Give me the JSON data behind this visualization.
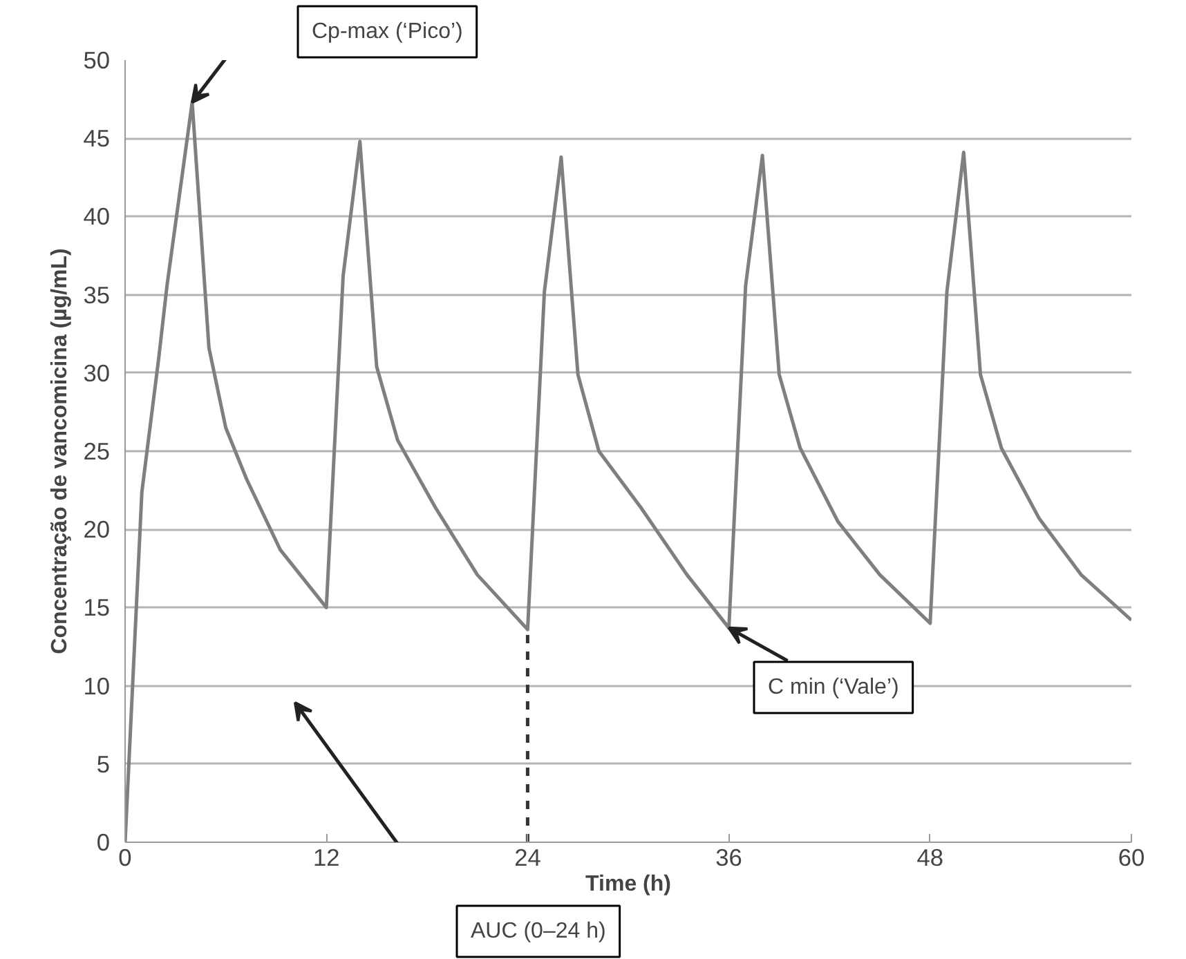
{
  "chart_data": {
    "type": "line",
    "xlabel": "Time (h)",
    "ylabel": "Concentração de vancomicina (µg/mL)",
    "x": [
      0,
      1,
      2,
      2.5,
      4,
      5,
      6,
      7.25,
      9.25,
      12,
      13,
      14,
      15,
      16.25,
      18.5,
      21,
      24,
      25,
      26,
      27,
      28.25,
      30.75,
      33.5,
      36,
      37,
      38,
      39,
      40.25,
      42.5,
      45,
      48,
      49,
      50,
      51,
      52.25,
      54.5,
      57,
      60
    ],
    "series": [
      {
        "color": "#7f7f7f",
        "values": [
          0,
          22.4,
          30.9,
          35.6,
          47.3,
          31.6,
          26.5,
          23.2,
          18.7,
          15.0,
          36.2,
          44.8,
          30.4,
          25.7,
          21.4,
          17.1,
          13.6,
          35.2,
          43.8,
          29.9,
          25.0,
          21.4,
          17.1,
          13.7,
          35.6,
          43.9,
          29.9,
          25.2,
          20.5,
          17.1,
          14.0,
          35.2,
          44.1,
          29.9,
          25.2,
          20.7,
          17.1,
          14.2
        ]
      }
    ],
    "xlim": [
      0,
      60
    ],
    "xticks": [
      0,
      12,
      24,
      36,
      48,
      60
    ],
    "ylim": [
      0,
      50
    ],
    "yticks": [
      0,
      5,
      10,
      15,
      20,
      25,
      30,
      35,
      40,
      45,
      50
    ],
    "grid": "y",
    "marker": "none",
    "line_style": "solid",
    "ref_lines": [
      {
        "axis": "x",
        "value": 24,
        "color": "#333333",
        "line_style": "dashed"
      }
    ],
    "annotations": [
      "Cp-max (‘Pico’)",
      {
        "text": "C min (‘Vale’)",
        "x": 36,
        "y": 13.7
      },
      "AUC (0–24 h)"
    ]
  }
}
